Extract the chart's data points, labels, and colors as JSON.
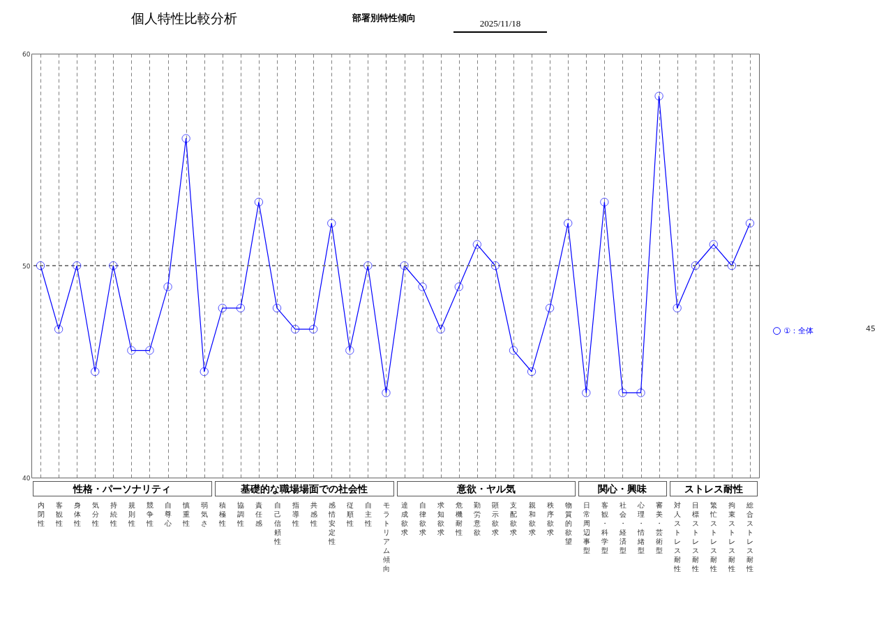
{
  "chart_data": {
    "type": "line",
    "title": "個人特性比較分析",
    "subtitle": "部署別特性傾向",
    "categories": [
      "内閉性",
      "客観性",
      "身体性",
      "気分性",
      "持続性",
      "規則性",
      "競争性",
      "自尊心",
      "慎重性",
      "弱気さ",
      "積極性",
      "協調性",
      "責任感",
      "自己信頼性",
      "指導性",
      "共感性",
      "感情安定性",
      "従順性",
      "自主性",
      "モラトリアム傾向",
      "達成欲求",
      "自律欲求",
      "求知欲求",
      "危機耐性",
      "勤労意欲",
      "顕示欲求",
      "支配欲求",
      "親和欲求",
      "秩序欲求",
      "物質的欲望",
      "日常周辺事型",
      "客観・科学型",
      "社会・経済型",
      "心理・情緒型",
      "審美・芸術型",
      "対人ストレス耐性",
      "目標ストレス耐性",
      "繁忙ストレス耐性",
      "拘束ストレス耐性",
      "総合ストレス耐性"
    ],
    "series": [
      {
        "name": "①：全体",
        "color": "#0000ff",
        "values": [
          50,
          47,
          50,
          45,
          50,
          46,
          46,
          49,
          56,
          45,
          48,
          48,
          53,
          48,
          47,
          47,
          52,
          46,
          50,
          44,
          50,
          49,
          47,
          49,
          51,
          50,
          46,
          45,
          48,
          52,
          44,
          53,
          44,
          44,
          58,
          48,
          50,
          51,
          50,
          52
        ]
      }
    ],
    "ylim": [
      40,
      60
    ],
    "yticks": [
      40,
      50,
      60
    ],
    "grid": "x",
    "legend": "right",
    "marker": "circle",
    "line_style": "solid",
    "ref_lines": [
      {
        "axis": "y",
        "value": 50,
        "color": "#808080",
        "line_style": "dashed"
      }
    ],
    "annotations": [
      "2025/11/18",
      "45",
      "性格・パーソナリティ",
      "基礎的な職場場面での社会性",
      "意欲・ヤル気",
      "関心・興味",
      "ストレス耐性"
    ]
  }
}
